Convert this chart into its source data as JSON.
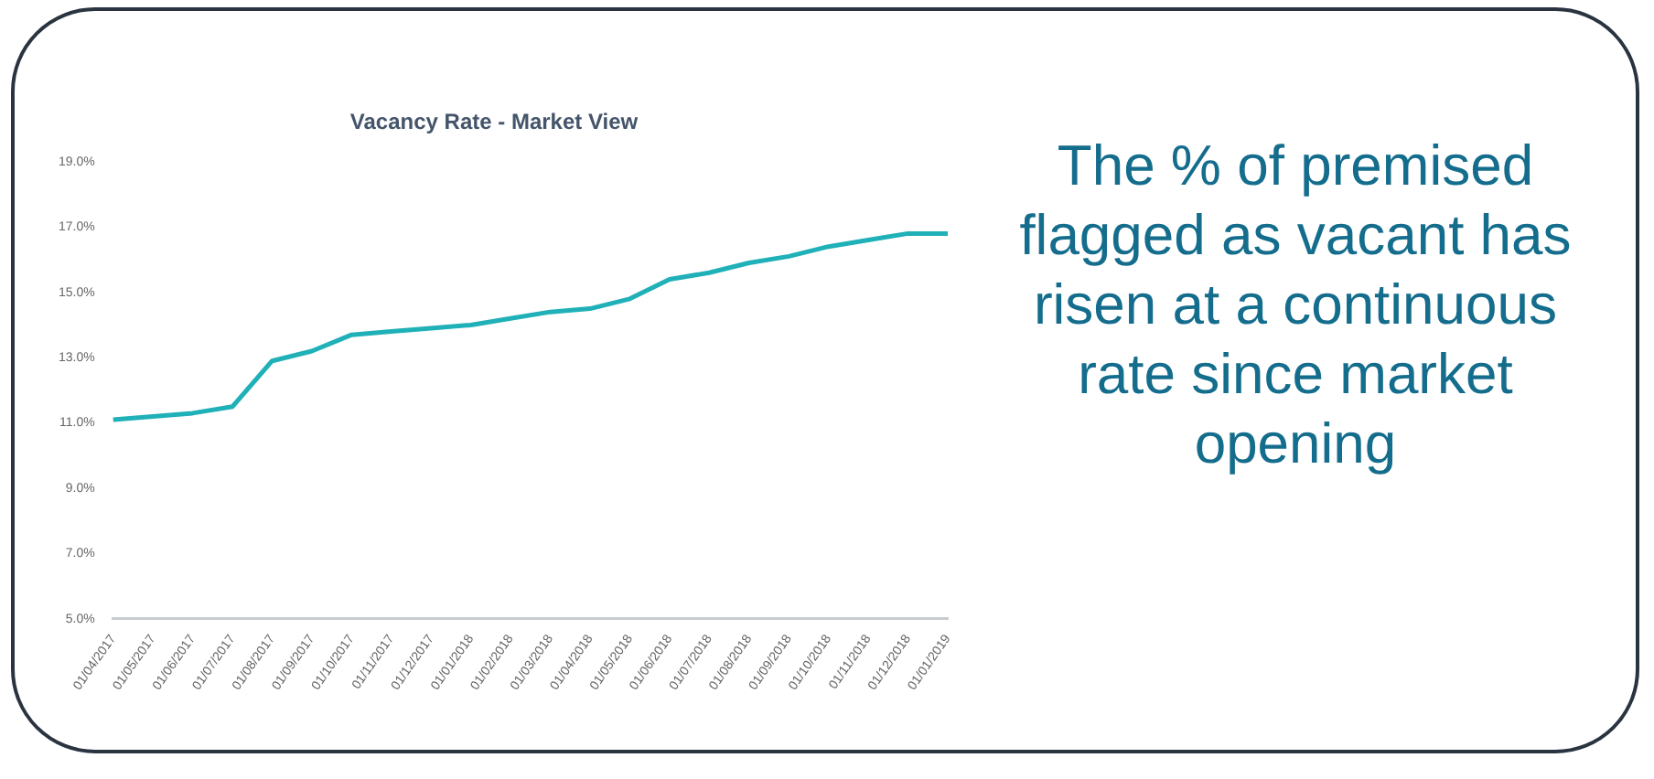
{
  "chart_data": {
    "type": "line",
    "title": "Vacancy Rate - Market View",
    "categories": [
      "01/04/2017",
      "01/05/2017",
      "01/06/2017",
      "01/07/2017",
      "01/08/2017",
      "01/09/2017",
      "01/10/2017",
      "01/11/2017",
      "01/12/2017",
      "01/01/2018",
      "01/02/2018",
      "01/03/2018",
      "01/04/2018",
      "01/05/2018",
      "01/06/2018",
      "01/07/2018",
      "01/08/2018",
      "01/09/2018",
      "01/10/2018",
      "01/11/2018",
      "01/12/2018",
      "01/01/2019"
    ],
    "series": [
      {
        "color": "#1fb0b8",
        "values": [
          11.1,
          11.2,
          11.3,
          11.5,
          12.9,
          13.2,
          13.7,
          13.8,
          13.9,
          14.0,
          14.2,
          14.4,
          14.5,
          14.8,
          15.4,
          15.6,
          15.9,
          16.1,
          16.4,
          16.6,
          16.8,
          16.8
        ]
      }
    ],
    "ylim": [
      5,
      19
    ],
    "yticks": [
      {
        "value": 5,
        "label": "5.0%"
      },
      {
        "value": 7,
        "label": "7.0%"
      },
      {
        "value": 9,
        "label": "9.0%"
      },
      {
        "value": 11,
        "label": "11.0%"
      },
      {
        "value": 13,
        "label": "13.0%"
      },
      {
        "value": 15,
        "label": "15.0%"
      },
      {
        "value": 17,
        "label": "17.0%"
      },
      {
        "value": 19,
        "label": "19.0%"
      }
    ],
    "grid": false,
    "legend": false,
    "marker": "none",
    "line_style": "solid",
    "annotations": [
      "The % of premised flagged as vacant has risen at a continuous rate since market opening"
    ]
  }
}
